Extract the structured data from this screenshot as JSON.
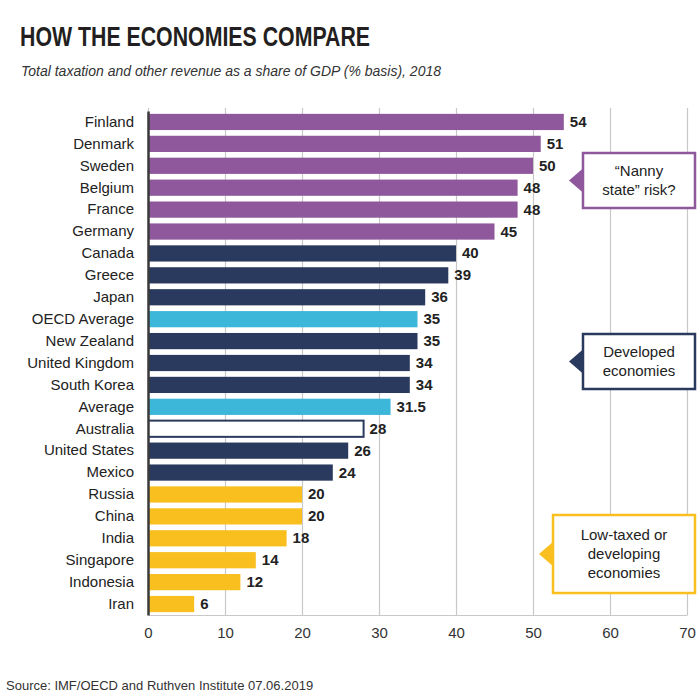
{
  "chart_data": {
    "type": "bar",
    "orientation": "horizontal",
    "title": "HOW THE ECONOMIES COMPARE",
    "subtitle": "Total taxation and other revenue as a share of GDP (% basis), 2018",
    "source": "Source: IMF/OECD and Ruthven Institute 07.06.2019",
    "categories": [
      "Finland",
      "Denmark",
      "Sweden",
      "Belgium",
      "France",
      "Germany",
      "Canada",
      "Greece",
      "Japan",
      "OECD Average",
      "New Zealand",
      "United Kingdom",
      "South Korea",
      "Average",
      "Australia",
      "United States",
      "Mexico",
      "Russia",
      "China",
      "India",
      "Singapore",
      "Indonesia",
      "Iran"
    ],
    "values": [
      54,
      51,
      50,
      48,
      48,
      45,
      40,
      39,
      36,
      35,
      35,
      34,
      34,
      31.5,
      28,
      26,
      24,
      20,
      20,
      18,
      14,
      12,
      6
    ],
    "colors": [
      "#8f579c",
      "#8f579c",
      "#8f579c",
      "#8f579c",
      "#8f579c",
      "#8f579c",
      "#2a3a5e",
      "#2a3a5e",
      "#2a3a5e",
      "#3cb6d9",
      "#2a3a5e",
      "#2a3a5e",
      "#2a3a5e",
      "#3cb6d9",
      "#ffffff",
      "#2a3a5e",
      "#2a3a5e",
      "#f8bf1f",
      "#f8bf1f",
      "#f8bf1f",
      "#f8bf1f",
      "#f8bf1f",
      "#f8bf1f"
    ],
    "xlim": [
      0,
      70
    ],
    "xticks": [
      0,
      10,
      20,
      30,
      40,
      50,
      60,
      70
    ],
    "grid": true,
    "data_labels": true,
    "annotations": [
      [
        "“Nanny",
        "state” risk?"
      ],
      [
        "Developed",
        "economies"
      ],
      [
        "Low-taxed or",
        "developing",
        "economies"
      ]
    ]
  }
}
